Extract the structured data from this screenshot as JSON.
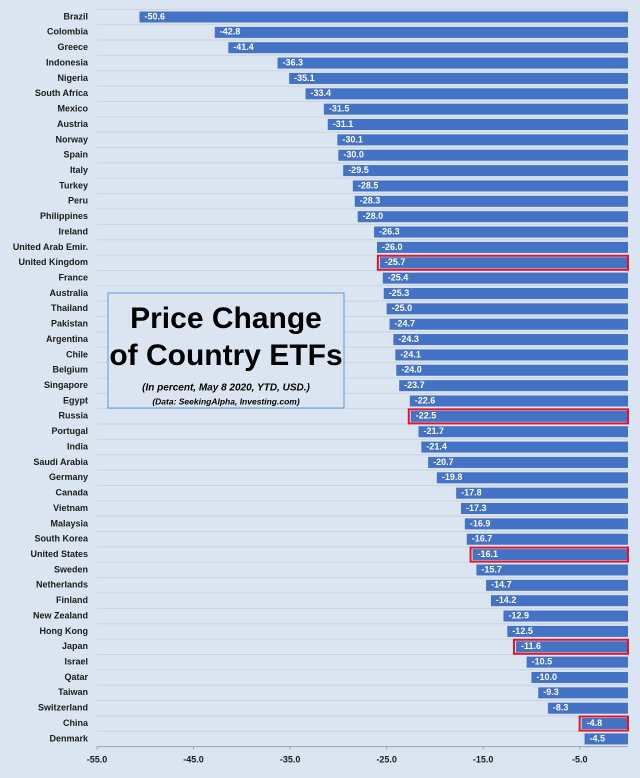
{
  "chart_data": {
    "type": "hbar",
    "title": [
      "Price Change",
      "of Country ETFs"
    ],
    "subtitle": "(In percent, May 8 2020, YTD, USD.)",
    "source": "(Data: SeekingAlpha, Investing.com)",
    "categories": [
      "Brazil",
      "Colombia",
      "Greece",
      "Indonesia",
      "Nigeria",
      "South Africa",
      "Mexico",
      "Austria",
      "Norway",
      "Spain",
      "Italy",
      "Turkey",
      "Peru",
      "Philippines",
      "Ireland",
      "United Arab Emir.",
      "United Kingdom",
      "France",
      "Australia",
      "Thailand",
      "Pakistan",
      "Argentina",
      "Chile",
      "Belgium",
      "Singapore",
      "Egypt",
      "Russia",
      "Portugal",
      "India",
      "Saudi Arabia",
      "Germany",
      "Canada",
      "Vietnam",
      "Malaysia",
      "South Korea",
      "United States",
      "Sweden",
      "Netherlands",
      "Finland",
      "New Zealand",
      "Hong Kong",
      "Japan",
      "Israel",
      "Qatar",
      "Taiwan",
      "Switzerland",
      "China",
      "Denmark"
    ],
    "values": [
      -50.6,
      -42.8,
      -41.4,
      -36.3,
      -35.1,
      -33.4,
      -31.5,
      -31.1,
      -30.1,
      -30,
      -29.5,
      -28.5,
      -28.3,
      -28,
      -26.3,
      -26,
      -25.7,
      -25.4,
      -25.3,
      -25,
      -24.7,
      -24.3,
      -24.1,
      -24,
      -23.7,
      -22.6,
      -22.5,
      -21.7,
      -21.4,
      -20.7,
      -19.8,
      -17.8,
      -17.3,
      -16.9,
      -16.7,
      -16.1,
      -15.7,
      -14.7,
      -14.2,
      -12.9,
      -12.5,
      -11.6,
      -10.5,
      -10,
      -9.3,
      -8.3,
      -4.8,
      -4.5
    ],
    "value_labels": [
      "-50.6",
      "-42.8",
      "-41.4",
      "-36.3",
      "-35.1",
      "-33.4",
      "-31.5",
      "-31.1",
      "-30.1",
      "-30.0",
      "-29.5",
      "-28.5",
      "-28.3",
      "-28.0",
      "-26.3",
      "-26.0",
      "-25.7",
      "-25.4",
      "-25.3",
      "-25.0",
      "-24.7",
      "-24.3",
      "-24.1",
      "-24.0",
      "-23.7",
      "-22.6",
      "-22.5",
      "-21.7",
      "-21.4",
      "-20.7",
      "-19.8",
      "-17.8",
      "-17.3",
      "-16.9",
      "-16.7",
      "-16.1",
      "-15.7",
      "-14.7",
      "-14.2",
      "-12.9",
      "-12.5",
      "-11.6",
      "-10.5",
      "-10.0",
      "-9.3",
      "-8.3",
      "-4.8",
      "-4.5"
    ],
    "color": "#4472c4",
    "highlight_color": "#e0162b",
    "highlighted": [
      16,
      26,
      35,
      41,
      46
    ],
    "xlim": [
      -55,
      0
    ],
    "xticks": [
      {
        "value": -55,
        "label": "-55.0"
      },
      {
        "value": -45,
        "label": "-45.0"
      },
      {
        "value": -35,
        "label": "-35.0"
      },
      {
        "value": -25,
        "label": "-25.0"
      },
      {
        "value": -15,
        "label": "-15.0"
      },
      {
        "value": -5,
        "label": "-5.0"
      }
    ]
  }
}
